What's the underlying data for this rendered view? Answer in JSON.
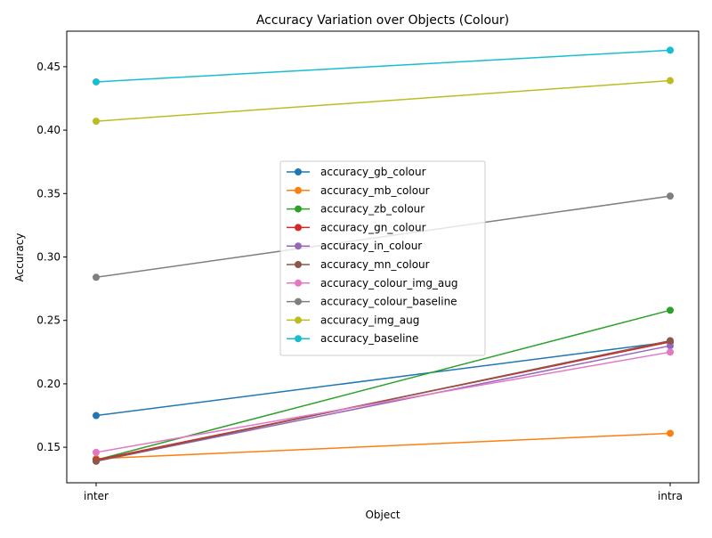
{
  "chart_data": {
    "type": "line",
    "title": "Accuracy Variation over Objects (Colour)",
    "xlabel": "Object",
    "ylabel": "Accuracy",
    "categories": [
      "inter",
      "intra"
    ],
    "ylim": [
      0.122,
      0.478
    ],
    "yticks": [
      0.15,
      0.2,
      0.25,
      0.3,
      0.35,
      0.4,
      0.45
    ],
    "ytick_labels": [
      "0.15",
      "0.20",
      "0.25",
      "0.30",
      "0.35",
      "0.40",
      "0.45"
    ],
    "grid": false,
    "legend_position": "center",
    "series": [
      {
        "name": "accuracy_gb_colour",
        "color": "#1f77b4",
        "values": [
          0.175,
          0.233
        ]
      },
      {
        "name": "accuracy_mb_colour",
        "color": "#ff7f0e",
        "values": [
          0.141,
          0.161
        ]
      },
      {
        "name": "accuracy_zb_colour",
        "color": "#2ca02c",
        "values": [
          0.14,
          0.258
        ]
      },
      {
        "name": "accuracy_gn_colour",
        "color": "#d62728",
        "values": [
          0.14,
          0.233
        ]
      },
      {
        "name": "accuracy_in_colour",
        "color": "#9467bd",
        "values": [
          0.139,
          0.23
        ]
      },
      {
        "name": "accuracy_mn_colour",
        "color": "#8c564b",
        "values": [
          0.139,
          0.234
        ]
      },
      {
        "name": "accuracy_colour_img_aug",
        "color": "#e377c2",
        "values": [
          0.146,
          0.225
        ]
      },
      {
        "name": "accuracy_colour_baseline",
        "color": "#7f7f7f",
        "values": [
          0.284,
          0.348
        ]
      },
      {
        "name": "accuracy_img_aug",
        "color": "#bcbd22",
        "values": [
          0.407,
          0.439
        ]
      },
      {
        "name": "accuracy_baseline",
        "color": "#17becf",
        "values": [
          0.438,
          0.463
        ]
      }
    ]
  }
}
